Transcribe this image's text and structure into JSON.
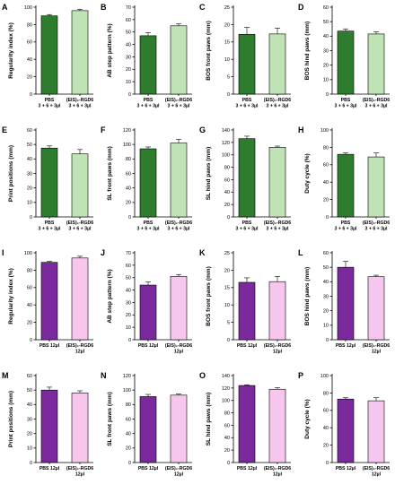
{
  "chart_data": [
    {
      "panel": "A",
      "type": "bar",
      "ylabel": "Regularity index (%)",
      "ylim": [
        0,
        100
      ],
      "yticks": [
        0,
        20,
        40,
        60,
        80,
        100
      ],
      "categories": [
        [
          "PBS",
          "3 + 6 + 3µl"
        ],
        [
          "(EIS)₂-RGD6",
          "3 + 6 + 3µl"
        ]
      ],
      "values": [
        90,
        96
      ],
      "errors": [
        1.5,
        1.5
      ],
      "colors": [
        "#2e7d2e",
        "#bfe3b4"
      ]
    },
    {
      "panel": "B",
      "type": "bar",
      "ylabel": "AB step pattern (%)",
      "ylim": [
        0,
        70
      ],
      "yticks": [
        0,
        10,
        20,
        30,
        40,
        50,
        60,
        70
      ],
      "categories": [
        [
          "PBS",
          "3 + 6 + 3µl"
        ],
        [
          "(EIS)₂-RGD6",
          "3 + 6 + 3µl"
        ]
      ],
      "values": [
        47,
        55
      ],
      "errors": [
        2.5,
        1.5
      ],
      "colors": [
        "#2e7d2e",
        "#bfe3b4"
      ]
    },
    {
      "panel": "C",
      "type": "bar",
      "ylabel": "BOS front paws (mm)",
      "ylim": [
        0,
        25
      ],
      "yticks": [
        0,
        5,
        10,
        15,
        20,
        25
      ],
      "categories": [
        [
          "PBS",
          "3 + 6 + 3µl"
        ],
        [
          "(EIS)₂-RGD6",
          "3 + 6 + 3µl"
        ]
      ],
      "values": [
        17.2,
        17.3
      ],
      "errors": [
        2.0,
        1.7
      ],
      "colors": [
        "#2e7d2e",
        "#bfe3b4"
      ]
    },
    {
      "panel": "D",
      "type": "bar",
      "ylabel": "BOS hind paws (mm)",
      "ylim": [
        0,
        60
      ],
      "yticks": [
        0,
        10,
        20,
        30,
        40,
        50,
        60
      ],
      "categories": [
        [
          "PBS",
          "3 + 6 + 3µl"
        ],
        [
          "(EIS)₂-RGD6",
          "3 + 6 + 3µl"
        ]
      ],
      "values": [
        43.5,
        41.5
      ],
      "errors": [
        1.5,
        1.5
      ],
      "colors": [
        "#2e7d2e",
        "#bfe3b4"
      ]
    },
    {
      "panel": "E",
      "type": "bar",
      "ylabel": "Print positions (mm)",
      "ylim": [
        0,
        60
      ],
      "yticks": [
        0,
        10,
        20,
        30,
        40,
        50,
        60
      ],
      "categories": [
        [
          "PBS",
          "3 + 6 + 3µl"
        ],
        [
          "(EIS)₂-RGD6",
          "3 + 6 + 3µl"
        ]
      ],
      "values": [
        47.5,
        43.5
      ],
      "errors": [
        1.5,
        3.0
      ],
      "colors": [
        "#2e7d2e",
        "#bfe3b4"
      ]
    },
    {
      "panel": "F",
      "type": "bar",
      "ylabel": "SL front paws (mm)",
      "ylim": [
        0,
        120
      ],
      "yticks": [
        0,
        20,
        40,
        60,
        80,
        100,
        120
      ],
      "categories": [
        [
          "PBS",
          "3 + 6 + 3µl"
        ],
        [
          "(EIS)₂-RGD6",
          "3 + 6 + 3µl"
        ]
      ],
      "values": [
        94,
        102
      ],
      "errors": [
        2.5,
        5.0
      ],
      "colors": [
        "#2e7d2e",
        "#bfe3b4"
      ]
    },
    {
      "panel": "G",
      "type": "bar",
      "ylabel": "SL hind paws (mm)",
      "ylim": [
        0,
        140
      ],
      "yticks": [
        0,
        20,
        40,
        60,
        80,
        100,
        120,
        140
      ],
      "categories": [
        [
          "PBS",
          "3 + 6 + 3µl"
        ],
        [
          "(EIS)₂-RGD6",
          "3 + 6 + 3µl"
        ]
      ],
      "values": [
        126,
        112
      ],
      "errors": [
        4.0,
        2.0
      ],
      "colors": [
        "#2e7d2e",
        "#bfe3b4"
      ]
    },
    {
      "panel": "H",
      "type": "bar",
      "ylabel": "Duty cycle (%)",
      "ylim": [
        0,
        100
      ],
      "yticks": [
        0,
        20,
        40,
        60,
        80,
        100
      ],
      "categories": [
        [
          "PBS",
          "3 + 6 + 3µl"
        ],
        [
          "(EIS)₂-RGD6",
          "3 + 6 + 3µl"
        ]
      ],
      "values": [
        72,
        69
      ],
      "errors": [
        1.5,
        4.5
      ],
      "colors": [
        "#2e7d2e",
        "#bfe3b4"
      ]
    },
    {
      "panel": "I",
      "type": "bar",
      "ylabel": "Regularity index (%)",
      "ylim": [
        0,
        100
      ],
      "yticks": [
        0,
        20,
        40,
        60,
        80,
        100
      ],
      "categories": [
        [
          "PBS 12µl"
        ],
        [
          "(EIS)₂-RGD6",
          "12µl"
        ]
      ],
      "values": [
        89,
        94
      ],
      "errors": [
        1.0,
        2.0
      ],
      "colors": [
        "#7b2a9e",
        "#f7c6ef"
      ]
    },
    {
      "panel": "J",
      "type": "bar",
      "ylabel": "AB step pattern (%)",
      "ylim": [
        0,
        70
      ],
      "yticks": [
        0,
        10,
        20,
        30,
        40,
        50,
        60,
        70
      ],
      "categories": [
        [
          "PBS 12µl"
        ],
        [
          "(EIS)₂-RGD6",
          "12µl"
        ]
      ],
      "values": [
        44,
        51
      ],
      "errors": [
        2.5,
        1.5
      ],
      "colors": [
        "#7b2a9e",
        "#f7c6ef"
      ]
    },
    {
      "panel": "K",
      "type": "bar",
      "ylabel": "BOS front paws (mm)",
      "ylim": [
        0,
        25
      ],
      "yticks": [
        0,
        5,
        10,
        15,
        20,
        25
      ],
      "categories": [
        [
          "PBS 12µl"
        ],
        [
          "(EIS)₂-RGD6",
          "12µl"
        ]
      ],
      "values": [
        16.5,
        16.7
      ],
      "errors": [
        1.3,
        1.5
      ],
      "colors": [
        "#7b2a9e",
        "#f7c6ef"
      ]
    },
    {
      "panel": "L",
      "type": "bar",
      "ylabel": "BOS hind paws (mm)",
      "ylim": [
        0,
        60
      ],
      "yticks": [
        0,
        10,
        20,
        30,
        40,
        50,
        60
      ],
      "categories": [
        [
          "PBS 12µl"
        ],
        [
          "(EIS)₂-RGD6",
          "12µl"
        ]
      ],
      "values": [
        50,
        43.5
      ],
      "errors": [
        4.0,
        1.0
      ],
      "colors": [
        "#7b2a9e",
        "#f7c6ef"
      ]
    },
    {
      "panel": "M",
      "type": "bar",
      "ylabel": "Print positions (mm)",
      "ylim": [
        0,
        60
      ],
      "yticks": [
        0,
        10,
        20,
        30,
        40,
        50,
        60
      ],
      "categories": [
        [
          "PBS 12µl"
        ],
        [
          "(EIS)₂-RGD6",
          "12µl"
        ]
      ],
      "values": [
        50,
        48
      ],
      "errors": [
        2.0,
        1.5
      ],
      "colors": [
        "#7b2a9e",
        "#f7c6ef"
      ]
    },
    {
      "panel": "N",
      "type": "bar",
      "ylabel": "SL front paws (mm)",
      "ylim": [
        0,
        120
      ],
      "yticks": [
        0,
        20,
        40,
        60,
        80,
        100,
        120
      ],
      "categories": [
        [
          "PBS 12µl"
        ],
        [
          "(EIS)₂-RGD6",
          "12µl"
        ]
      ],
      "values": [
        91,
        93
      ],
      "errors": [
        3.0,
        1.5
      ],
      "colors": [
        "#7b2a9e",
        "#f7c6ef"
      ]
    },
    {
      "panel": "O",
      "type": "bar",
      "ylabel": "SL hind paws (mm)",
      "ylim": [
        0,
        140
      ],
      "yticks": [
        0,
        20,
        40,
        60,
        80,
        100,
        120,
        140
      ],
      "categories": [
        [
          "PBS 12µl"
        ],
        [
          "(EIS)₂-RGD6",
          "12µl"
        ]
      ],
      "values": [
        124,
        118
      ],
      "errors": [
        1.0,
        2.5
      ],
      "colors": [
        "#7b2a9e",
        "#f7c6ef"
      ]
    },
    {
      "panel": "P",
      "type": "bar",
      "ylabel": "Duty cycle (%)",
      "ylim": [
        0,
        100
      ],
      "yticks": [
        0,
        20,
        40,
        60,
        80,
        100
      ],
      "categories": [
        [
          "PBS 12µl"
        ],
        [
          "(EIS)₂-RGD6",
          "12µl"
        ]
      ],
      "values": [
        73,
        71
      ],
      "errors": [
        1.5,
        3.5
      ],
      "colors": [
        "#7b2a9e",
        "#f7c6ef"
      ]
    }
  ]
}
